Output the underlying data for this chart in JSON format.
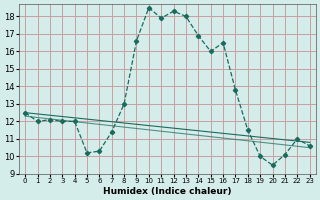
{
  "xlabel": "Humidex (Indice chaleur)",
  "ylabel": "",
  "bg_color": "#d4ecea",
  "grid_color": "#c8a0a0",
  "line_color": "#1a6b5e",
  "xlim": [
    -0.5,
    23.5
  ],
  "ylim": [
    9,
    18.7
  ],
  "yticks": [
    9,
    10,
    11,
    12,
    13,
    14,
    15,
    16,
    17,
    18
  ],
  "xticks": [
    0,
    1,
    2,
    3,
    4,
    5,
    6,
    7,
    8,
    9,
    10,
    11,
    12,
    13,
    14,
    15,
    16,
    17,
    18,
    19,
    20,
    21,
    22,
    23
  ],
  "curve1_x": [
    0,
    1,
    2,
    3,
    4,
    5,
    6,
    7,
    8,
    9,
    10,
    11,
    12,
    13,
    14,
    15,
    16,
    17,
    18,
    19,
    20,
    21,
    22,
    23
  ],
  "curve1_y": [
    12.5,
    12.0,
    12.1,
    12.0,
    12.0,
    10.2,
    10.3,
    11.4,
    13.0,
    16.6,
    18.5,
    17.9,
    18.3,
    18.0,
    16.9,
    16.0,
    16.5,
    13.8,
    11.5,
    10.0,
    9.5,
    10.1,
    11.0,
    10.6
  ],
  "trend1_x": [
    0,
    23
  ],
  "trend1_y": [
    12.5,
    10.8
  ],
  "trend2_x": [
    0,
    23
  ],
  "trend2_y": [
    12.3,
    10.5
  ]
}
